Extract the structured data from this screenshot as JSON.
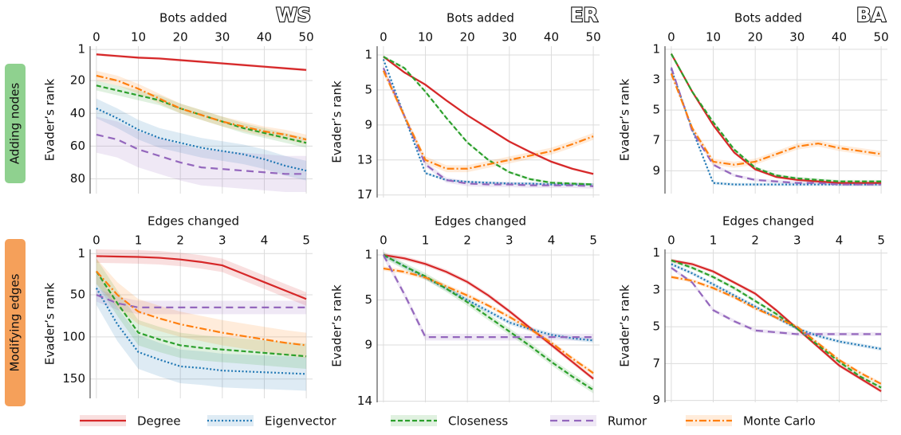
{
  "legend": [
    {
      "name": "Degree",
      "color": "#d62728",
      "linestyle": "solid"
    },
    {
      "name": "Eigenvector",
      "color": "#1f77b4",
      "linestyle": "dotted"
    },
    {
      "name": "Closeness",
      "color": "#2ca02c",
      "linestyle": "dashed"
    },
    {
      "name": "Rumor",
      "color": "#9467bd",
      "linestyle": "loosely-dashed"
    },
    {
      "name": "Monte Carlo",
      "color": "#ff7f0e",
      "linestyle": "dashdot"
    }
  ],
  "rows": [
    {
      "label": "Adding nodes",
      "color": "#8fd18f"
    },
    {
      "label": "Modifying edges",
      "color": "#f5a05a"
    }
  ],
  "chart_data": [
    {
      "type": "line",
      "label": "WS",
      "xlabel": "Bots added",
      "ylabel": "Evader’s rank",
      "y_inverted": true,
      "grid": true,
      "x": [
        0,
        5,
        10,
        15,
        20,
        25,
        30,
        35,
        40,
        45,
        50
      ],
      "xlim": [
        -1.5,
        51.5
      ],
      "xticks": [
        0,
        10,
        20,
        30,
        40,
        50
      ],
      "ylim": [
        -1,
        89
      ],
      "yticks": [
        1,
        20,
        40,
        60,
        80
      ],
      "series": [
        {
          "values": [
            4,
            5,
            6,
            6.5,
            7.5,
            8.5,
            9.5,
            10.5,
            11.5,
            12.5,
            13.5
          ],
          "spread": 0.8
        },
        {
          "values": [
            37,
            43,
            50,
            55,
            58,
            61,
            63,
            65,
            68,
            72,
            75
          ],
          "spread": 6
        },
        {
          "values": [
            23,
            26,
            29,
            32,
            37,
            41,
            45,
            49,
            52,
            55,
            58
          ],
          "spread": 3
        },
        {
          "values": [
            53,
            56,
            62,
            66,
            70,
            73,
            74,
            75,
            76,
            77,
            77
          ],
          "spread": 11
        },
        {
          "values": [
            17,
            20,
            25,
            31,
            37,
            41,
            45,
            48,
            51,
            53,
            56
          ],
          "spread": 3
        }
      ]
    },
    {
      "type": "line",
      "label": "ER",
      "xlabel": "Bots added",
      "ylabel": "Evader’s rank",
      "y_inverted": true,
      "grid": true,
      "x": [
        0,
        5,
        10,
        15,
        20,
        25,
        30,
        35,
        40,
        45,
        50
      ],
      "xlim": [
        -1.5,
        51.5
      ],
      "xticks": [
        0,
        10,
        20,
        30,
        40,
        50
      ],
      "ylim": [
        0,
        17.3
      ],
      "yticks": [
        1,
        5,
        9,
        13,
        17
      ],
      "series": [
        {
          "values": [
            1.2,
            3.0,
            4.4,
            6.2,
            7.9,
            9.4,
            10.9,
            12.1,
            13.2,
            14.0,
            14.6
          ],
          "spread": 0.15
        },
        {
          "values": [
            1.5,
            8,
            14.5,
            15.3,
            15.5,
            15.6,
            15.7,
            15.7,
            15.8,
            15.8,
            15.8
          ],
          "spread": 0.15
        },
        {
          "values": [
            1.2,
            2.5,
            5.2,
            8.2,
            11,
            13,
            14.4,
            15.2,
            15.6,
            15.7,
            15.8
          ],
          "spread": 0.15
        },
        {
          "values": [
            2.5,
            8,
            13.5,
            15.3,
            15.7,
            15.8,
            15.8,
            15.9,
            15.9,
            15.9,
            16
          ],
          "spread": 0.3
        },
        {
          "values": [
            2.8,
            8,
            13,
            14,
            14,
            13.5,
            13,
            12.5,
            12,
            11.2,
            10.3
          ],
          "spread": 0.4
        }
      ]
    },
    {
      "type": "line",
      "label": "BA",
      "xlabel": "Bots added",
      "ylabel": "Evader’s rank",
      "y_inverted": true,
      "grid": true,
      "x": [
        0,
        5,
        10,
        15,
        20,
        25,
        30,
        35,
        40,
        45,
        50
      ],
      "xlim": [
        -1.5,
        51.5
      ],
      "xticks": [
        0,
        10,
        20,
        30,
        40,
        50
      ],
      "ylim": [
        0.8,
        10.5
      ],
      "yticks": [
        1,
        3,
        5,
        7,
        9
      ],
      "series": [
        {
          "values": [
            1.3,
            3.8,
            6,
            7.8,
            8.9,
            9.4,
            9.6,
            9.7,
            9.8,
            9.8,
            9.8
          ],
          "spread": 0.1
        },
        {
          "values": [
            2.3,
            6.3,
            9.8,
            9.9,
            9.9,
            9.9,
            9.9,
            9.9,
            9.9,
            9.9,
            9.9
          ],
          "spread": 0.1
        },
        {
          "values": [
            1.3,
            3.8,
            5.8,
            7.6,
            8.8,
            9.3,
            9.5,
            9.6,
            9.7,
            9.7,
            9.7
          ],
          "spread": 0.1
        },
        {
          "values": [
            2.2,
            6.4,
            8.6,
            9.3,
            9.6,
            9.7,
            9.8,
            9.8,
            9.9,
            9.9,
            9.9
          ],
          "spread": 0.1
        },
        {
          "values": [
            2.6,
            6.2,
            8.4,
            8.6,
            8.4,
            7.9,
            7.4,
            7.2,
            7.5,
            7.7,
            7.9
          ],
          "spread": 0.2
        }
      ]
    },
    {
      "type": "line",
      "label": "WS",
      "xlabel": "Edges changed",
      "ylabel": "Evader’s rank",
      "y_inverted": true,
      "grid": true,
      "x": [
        0,
        0.5,
        1,
        1.5,
        2,
        2.5,
        3,
        3.5,
        4,
        4.5,
        5
      ],
      "xlim": [
        -0.15,
        5.15
      ],
      "xticks": [
        0,
        1,
        2,
        3,
        4,
        5
      ],
      "ylim": [
        -4,
        173
      ],
      "yticks": [
        1,
        50,
        100,
        150
      ],
      "series": [
        {
          "values": [
            4,
            4.5,
            5,
            6,
            8,
            11,
            15,
            25,
            35,
            45,
            55
          ],
          "spread": 8
        },
        {
          "values": [
            42,
            85,
            118,
            127,
            135,
            137,
            140,
            141,
            142,
            143,
            144
          ],
          "spread": 20
        },
        {
          "values": [
            22,
            60,
            95,
            103,
            110,
            113,
            115,
            117,
            119,
            121,
            123
          ],
          "spread": 15
        },
        {
          "values": [
            50,
            60,
            65,
            65,
            65,
            65,
            65,
            65,
            65,
            65,
            65
          ],
          "spread": 8
        },
        {
          "values": [
            22,
            50,
            70,
            78,
            85,
            90,
            95,
            99,
            103,
            107,
            110
          ],
          "spread": 15
        }
      ]
    },
    {
      "type": "line",
      "label": "ER",
      "xlabel": "Edges changed",
      "ylabel": "Evader’s rank",
      "y_inverted": true,
      "grid": true,
      "x": [
        0,
        0.5,
        1,
        1.5,
        2,
        2.5,
        3,
        3.5,
        4,
        4.5,
        5
      ],
      "xlim": [
        -0.15,
        5.15
      ],
      "xticks": [
        0,
        1,
        2,
        3,
        4,
        5
      ],
      "ylim": [
        0.5,
        14.1
      ],
      "yticks": [
        1,
        5,
        9,
        14
      ],
      "series": [
        {
          "values": [
            1,
            1.3,
            1.8,
            2.5,
            3.4,
            4.6,
            6,
            7.5,
            9,
            10.5,
            12
          ],
          "spread": 0.2
        },
        {
          "values": [
            1,
            2,
            3,
            4,
            5,
            6,
            7,
            7.6,
            8.1,
            8.4,
            8.6
          ],
          "spread": 0.2
        },
        {
          "values": [
            1,
            2,
            2.9,
            4,
            5.2,
            6.5,
            7.8,
            9.1,
            10.5,
            11.8,
            13
          ],
          "spread": 0.3
        },
        {
          "values": [
            1,
            4.5,
            8.3,
            8.3,
            8.3,
            8.3,
            8.3,
            8.3,
            8.3,
            8.3,
            8.3
          ],
          "spread": 0.3
        },
        {
          "values": [
            2.2,
            2.5,
            3,
            3.8,
            4.6,
            5.5,
            6.5,
            7.6,
            8.8,
            10.2,
            11.5
          ],
          "spread": 0.2
        }
      ]
    },
    {
      "type": "line",
      "label": "BA",
      "xlabel": "Edges changed",
      "ylabel": "Evader’s rank",
      "y_inverted": true,
      "grid": true,
      "x": [
        0,
        0.5,
        1,
        1.5,
        2,
        2.5,
        3,
        3.5,
        4,
        4.5,
        5
      ],
      "xlim": [
        -0.15,
        5.15
      ],
      "xticks": [
        0,
        1,
        2,
        3,
        4,
        5
      ],
      "ylim": [
        0.8,
        9.1
      ],
      "yticks": [
        1,
        3,
        5,
        7,
        9
      ],
      "series": [
        {
          "values": [
            1.4,
            1.6,
            2,
            2.6,
            3.2,
            4.1,
            5.1,
            6.1,
            7.1,
            7.8,
            8.5
          ],
          "spread": 0.1
        },
        {
          "values": [
            1.6,
            2.1,
            2.7,
            3.3,
            3.9,
            4.5,
            5.1,
            5.5,
            5.8,
            6,
            6.2
          ],
          "spread": 0.1
        },
        {
          "values": [
            1.4,
            1.8,
            2.3,
            2.9,
            3.6,
            4.3,
            5.1,
            6,
            6.9,
            7.7,
            8.3
          ],
          "spread": 0.1
        },
        {
          "values": [
            1.8,
            2.6,
            4.1,
            4.7,
            5.2,
            5.3,
            5.4,
            5.4,
            5.4,
            5.4,
            5.4
          ],
          "spread": 0.1
        },
        {
          "values": [
            2.3,
            2.5,
            2.9,
            3.4,
            4,
            4.5,
            5,
            5.9,
            6.8,
            7.5,
            8.1
          ],
          "spread": 0.1
        }
      ]
    }
  ]
}
